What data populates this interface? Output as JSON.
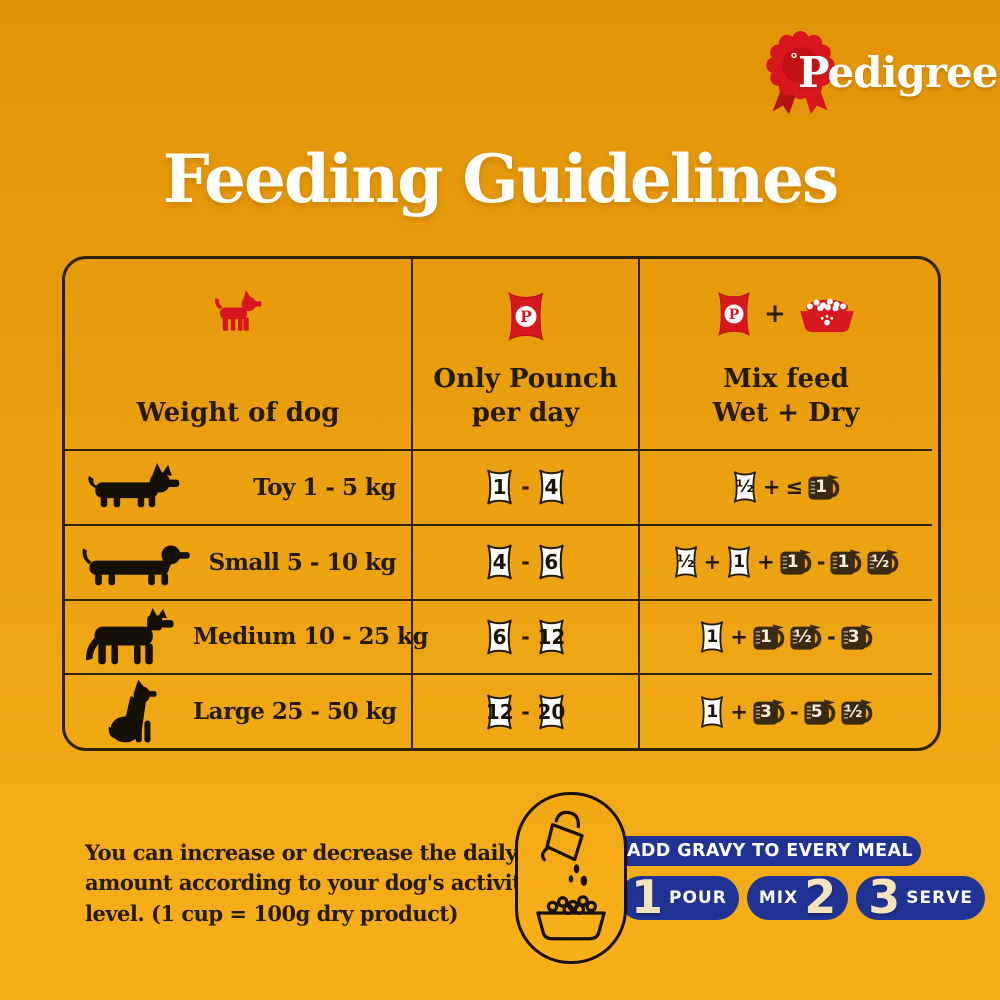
{
  "brand": {
    "trademark": "°",
    "name": "Pedigree"
  },
  "title": "Feeding Guidelines",
  "table": {
    "header": {
      "weight_col": {
        "icon": "red-dog-icon",
        "label": "Weight of dog"
      },
      "pouch_col": {
        "icon": "pouch-icon",
        "label_line1": "Only Pounch",
        "label_line2": "per day"
      },
      "mix_col": {
        "icon_left": "pouch-icon",
        "plus": "+",
        "icon_right": "bowl-icon",
        "label_line1": "Mix feed",
        "label_line2": "Wet + Dry"
      }
    },
    "rows": [
      {
        "icon": "toy-dog-icon",
        "label": "Toy 1 - 5 kg",
        "pouch_only": [
          {
            "type": "pouch",
            "value": "1"
          },
          {
            "type": "op",
            "value": "-"
          },
          {
            "type": "pouch",
            "value": "4"
          }
        ],
        "mix_feed": [
          {
            "type": "pouch",
            "value": "½"
          },
          {
            "type": "op",
            "value": "+"
          },
          {
            "type": "op",
            "value": "≤"
          },
          {
            "type": "cup",
            "value": "1"
          }
        ]
      },
      {
        "icon": "small-dog-icon",
        "label": "Small 5 - 10 kg",
        "pouch_only": [
          {
            "type": "pouch",
            "value": "4"
          },
          {
            "type": "op",
            "value": "-"
          },
          {
            "type": "pouch",
            "value": "6"
          }
        ],
        "mix_feed": [
          {
            "type": "pouch",
            "value": "½"
          },
          {
            "type": "op",
            "value": "+"
          },
          {
            "type": "pouch",
            "value": "1"
          },
          {
            "type": "op",
            "value": "+"
          },
          {
            "type": "cup",
            "value": "1"
          },
          {
            "type": "op",
            "value": "-"
          },
          {
            "type": "cup",
            "value": "1"
          },
          {
            "type": "cup",
            "value": "½"
          }
        ]
      },
      {
        "icon": "medium-dog-icon",
        "label": "Medium 10 - 25 kg",
        "pouch_only": [
          {
            "type": "pouch",
            "value": "6"
          },
          {
            "type": "op",
            "value": "-"
          },
          {
            "type": "pouch",
            "value": "12"
          }
        ],
        "mix_feed": [
          {
            "type": "pouch",
            "value": "1"
          },
          {
            "type": "op",
            "value": "+"
          },
          {
            "type": "cup",
            "value": "1"
          },
          {
            "type": "cup",
            "value": "½"
          },
          {
            "type": "op",
            "value": "-"
          },
          {
            "type": "cup",
            "value": "3"
          }
        ]
      },
      {
        "icon": "large-dog-icon",
        "label": "Large 25 - 50 kg",
        "pouch_only": [
          {
            "type": "pouch",
            "value": "12"
          },
          {
            "type": "op",
            "value": "-"
          },
          {
            "type": "pouch",
            "value": "20"
          }
        ],
        "mix_feed": [
          {
            "type": "pouch",
            "value": "1"
          },
          {
            "type": "op",
            "value": "+"
          },
          {
            "type": "cup",
            "value": "3"
          },
          {
            "type": "op",
            "value": "-"
          },
          {
            "type": "cup",
            "value": "5"
          },
          {
            "type": "cup",
            "value": "½"
          }
        ]
      }
    ]
  },
  "footnote": {
    "line1": "You can increase or decrease the daily",
    "line2": "amount according to your dog's activity",
    "line3": "level. (1 cup = 100g dry product)"
  },
  "gravy": {
    "banner": "ADD GRAVY TO EVERY MEAL",
    "steps": [
      {
        "number": "1",
        "label": "POUR"
      },
      {
        "number": "2",
        "label": "MIX"
      },
      {
        "number": "3",
        "label": "SERVE"
      }
    ]
  },
  "colors": {
    "background_top": "#e29407",
    "background_bottom": "#f7b01b",
    "brand_red": "#d6171d",
    "text_dark": "#241b02",
    "cup_brown": "#3b2a12",
    "step_blue": "#203293",
    "step_cream": "#f3e4bc",
    "pouch_white": "#ffffff"
  }
}
